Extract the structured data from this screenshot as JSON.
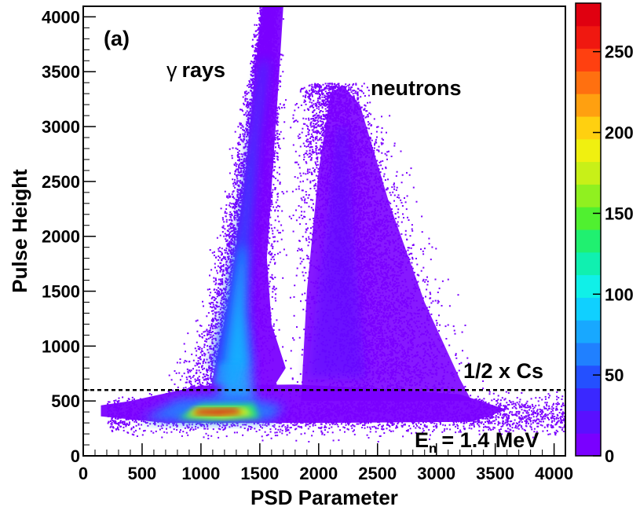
{
  "chart_data": {
    "type": "heatmap",
    "title": "",
    "xlabel": "PSD Parameter",
    "ylabel": "Pulse Height",
    "xlim": [
      0,
      4096
    ],
    "ylim": [
      0,
      4096
    ],
    "x_ticks": [
      0,
      500,
      1000,
      1500,
      2000,
      2500,
      3000,
      3500,
      4000
    ],
    "y_ticks": [
      0,
      500,
      1000,
      1500,
      2000,
      2500,
      3000,
      3500,
      4000
    ],
    "colorbar": {
      "range": [
        0,
        280
      ],
      "ticks": [
        0,
        50,
        100,
        150,
        200,
        250
      ],
      "palette": [
        "#7a00ff",
        "#5a10ff",
        "#3a28ff",
        "#2450ff",
        "#2080ff",
        "#18a8ff",
        "#10d0ff",
        "#10f0e8",
        "#10f0b0",
        "#20f070",
        "#50f030",
        "#90f020",
        "#c8f018",
        "#f0f010",
        "#ffd010",
        "#ffa010",
        "#ff7010",
        "#ff4010",
        "#f01810",
        "#e00010"
      ]
    },
    "bands": [
      {
        "name": "γ rays",
        "ridge": [
          [
            180,
            410
          ],
          [
            1000,
            420
          ],
          [
            1300,
            1200
          ],
          [
            1480,
            2800
          ],
          [
            1580,
            4096
          ]
        ]
      },
      {
        "name": "neutrons",
        "ridge": [
          [
            1600,
            420
          ],
          [
            1900,
            800
          ],
          [
            2100,
            2500
          ],
          [
            2200,
            3400
          ],
          [
            3000,
            500
          ]
        ]
      }
    ],
    "threshold": {
      "label": "1/2 x Cs",
      "y": 600
    },
    "annotations": [
      {
        "id": "panel",
        "text": "(a)"
      },
      {
        "id": "gamma",
        "symbol": "γ",
        "text": "rays"
      },
      {
        "id": "neutrons",
        "text": "neutrons"
      },
      {
        "id": "energy",
        "base": "E",
        "sub": "n",
        "text": "= 1.4 MeV"
      }
    ]
  }
}
